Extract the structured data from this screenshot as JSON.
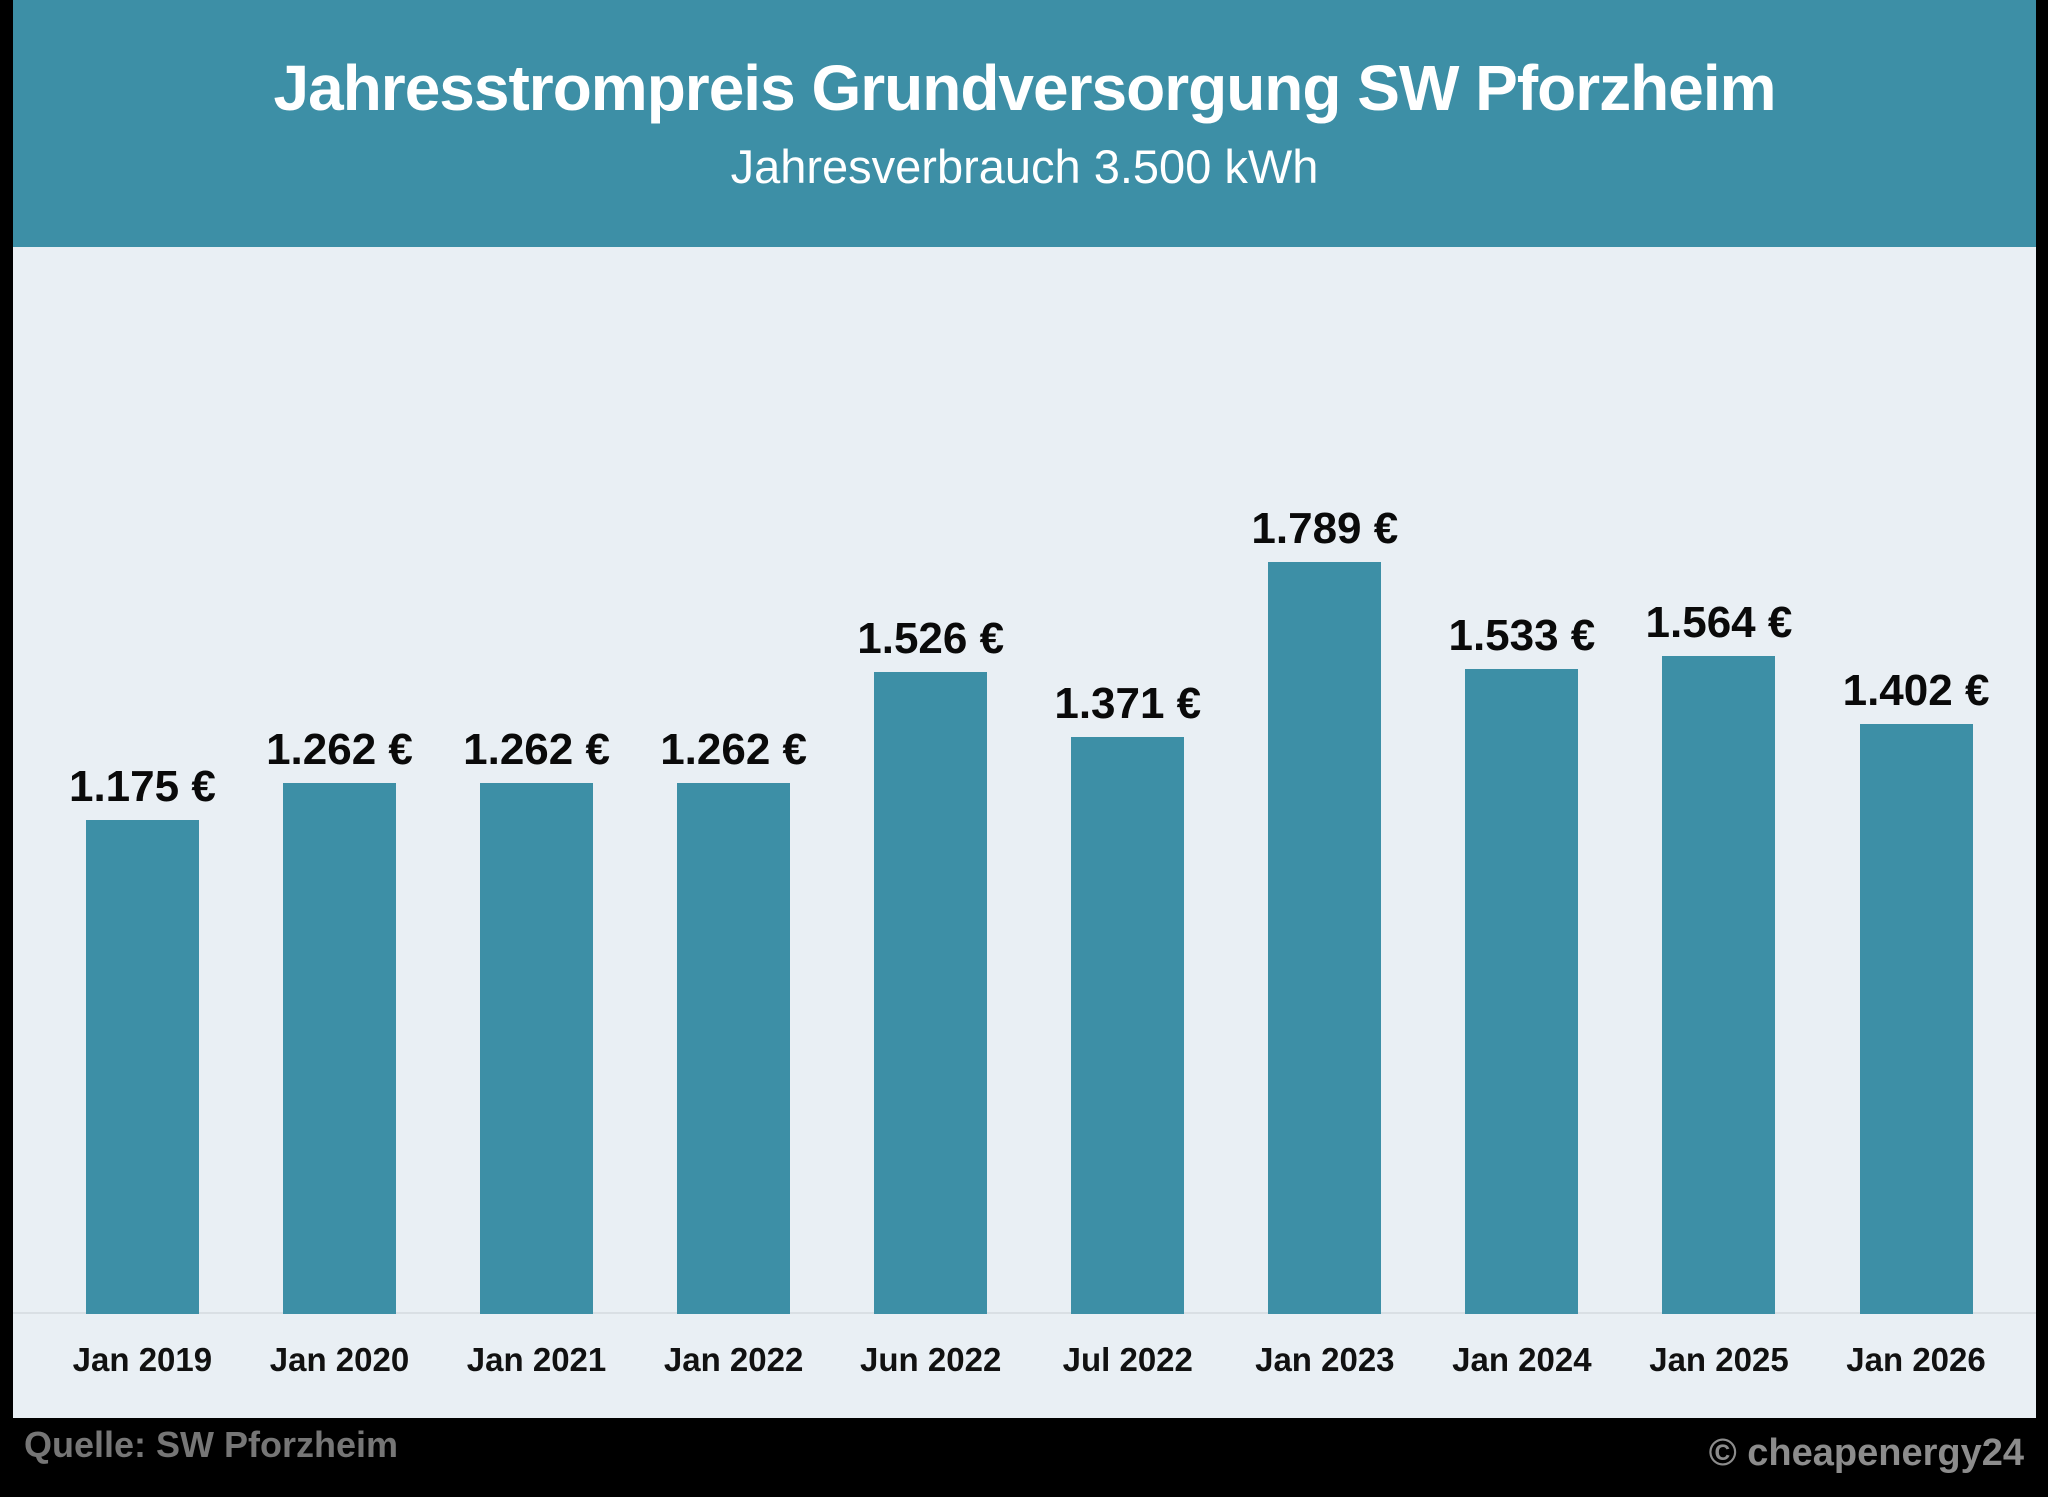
{
  "header": {
    "title": "Jahresstrompreis Grundversorgung SW Pforzheim",
    "subtitle": "Jahresverbrauch 3.500 kWh",
    "bg_color": "#3d8fa6",
    "text_color": "#ffffff"
  },
  "chart_data": {
    "type": "bar",
    "title": "Jahresstrompreis Grundversorgung SW Pforzheim",
    "subtitle": "Jahresverbrauch 3.500 kWh",
    "categories": [
      "Jan 2019",
      "Jan 2020",
      "Jan 2021",
      "Jan 2022",
      "Jun 2022",
      "Jul 2022",
      "Jan 2023",
      "Jan 2024",
      "Jan 2025",
      "Jan 2026"
    ],
    "values": [
      1175,
      1262,
      1262,
      1262,
      1526,
      1371,
      1789,
      1533,
      1564,
      1402
    ],
    "value_labels": [
      "1.175 €",
      "1.262 €",
      "1.262 €",
      "1.262 €",
      "1.526 €",
      "1.371 €",
      "1.789 €",
      "1.533 €",
      "1.564 €",
      "1.402 €"
    ],
    "unit": "€",
    "xlabel": "",
    "ylabel": "",
    "ylim": [
      0,
      1900
    ],
    "grid": false,
    "legend": false,
    "bar_color": "#3d8fa6",
    "background_color": "#e9eff4",
    "axis_line_color": "#d9dfe4",
    "value_label_color": "#0a0a0a",
    "tick_label_color": "#111111"
  },
  "footer": {
    "source": "Quelle: SW Pforzheim",
    "source_color": "#767676",
    "copyright": "© cheapenergy24",
    "copyright_color": "#8c8c8c",
    "bg_color": "#000000"
  }
}
